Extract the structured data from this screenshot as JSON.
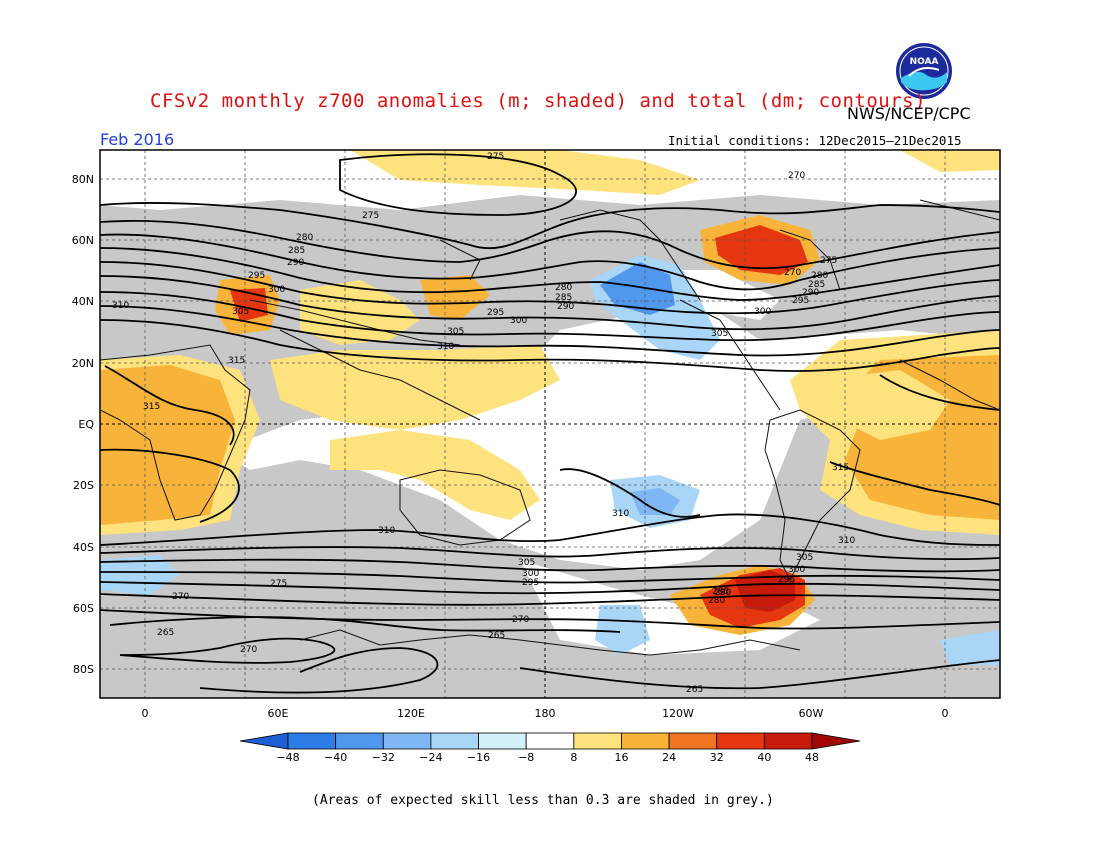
{
  "title": "CFSv2 monthly z700 anomalies (m; shaded) and total (dm; contours)",
  "agency": "NWS/NCEP/CPC",
  "logo_text": "NOAA",
  "month": "Feb 2016",
  "initial_conditions": "Initial conditions: 12Dec2015–21Dec2015",
  "footnote": "(Areas of expected skill less than 0.3 are shaded in grey.)",
  "axes": {
    "lat_labels": [
      "80N",
      "60N",
      "40N",
      "20N",
      "EQ",
      "20S",
      "40S",
      "60S",
      "80S"
    ],
    "lon_labels": [
      "0",
      "60E",
      "120E",
      "180",
      "120W",
      "60W",
      "0"
    ]
  },
  "colorbar": {
    "ticks": [
      "−48",
      "−40",
      "−32",
      "−24",
      "−16",
      "−8",
      "8",
      "16",
      "24",
      "32",
      "40",
      "48"
    ],
    "colors": [
      "#1f5fd6",
      "#2e7ce6",
      "#4f98ee",
      "#7eb7f3",
      "#a9d6f7",
      "#d2f1f9",
      "#ffffff",
      "#fde27d",
      "#f8b43a",
      "#f07422",
      "#e6360f",
      "#c81a0a",
      "#a00808"
    ]
  },
  "skill_grey": "#c8c8c8",
  "contour_labels": [
    "275",
    "270",
    "275",
    "280",
    "285",
    "290",
    "295",
    "300",
    "305",
    "310",
    "315",
    "315",
    "310",
    "305",
    "300",
    "295",
    "290",
    "285",
    "280",
    "275",
    "270",
    "265",
    "270",
    "265",
    "270",
    "310",
    "305",
    "300",
    "295",
    "280",
    "285",
    "290",
    "295",
    "300",
    "305",
    "310",
    "315",
    "310",
    "305",
    "300",
    "295",
    "290",
    "285",
    "280",
    "275",
    "270",
    "265"
  ]
}
